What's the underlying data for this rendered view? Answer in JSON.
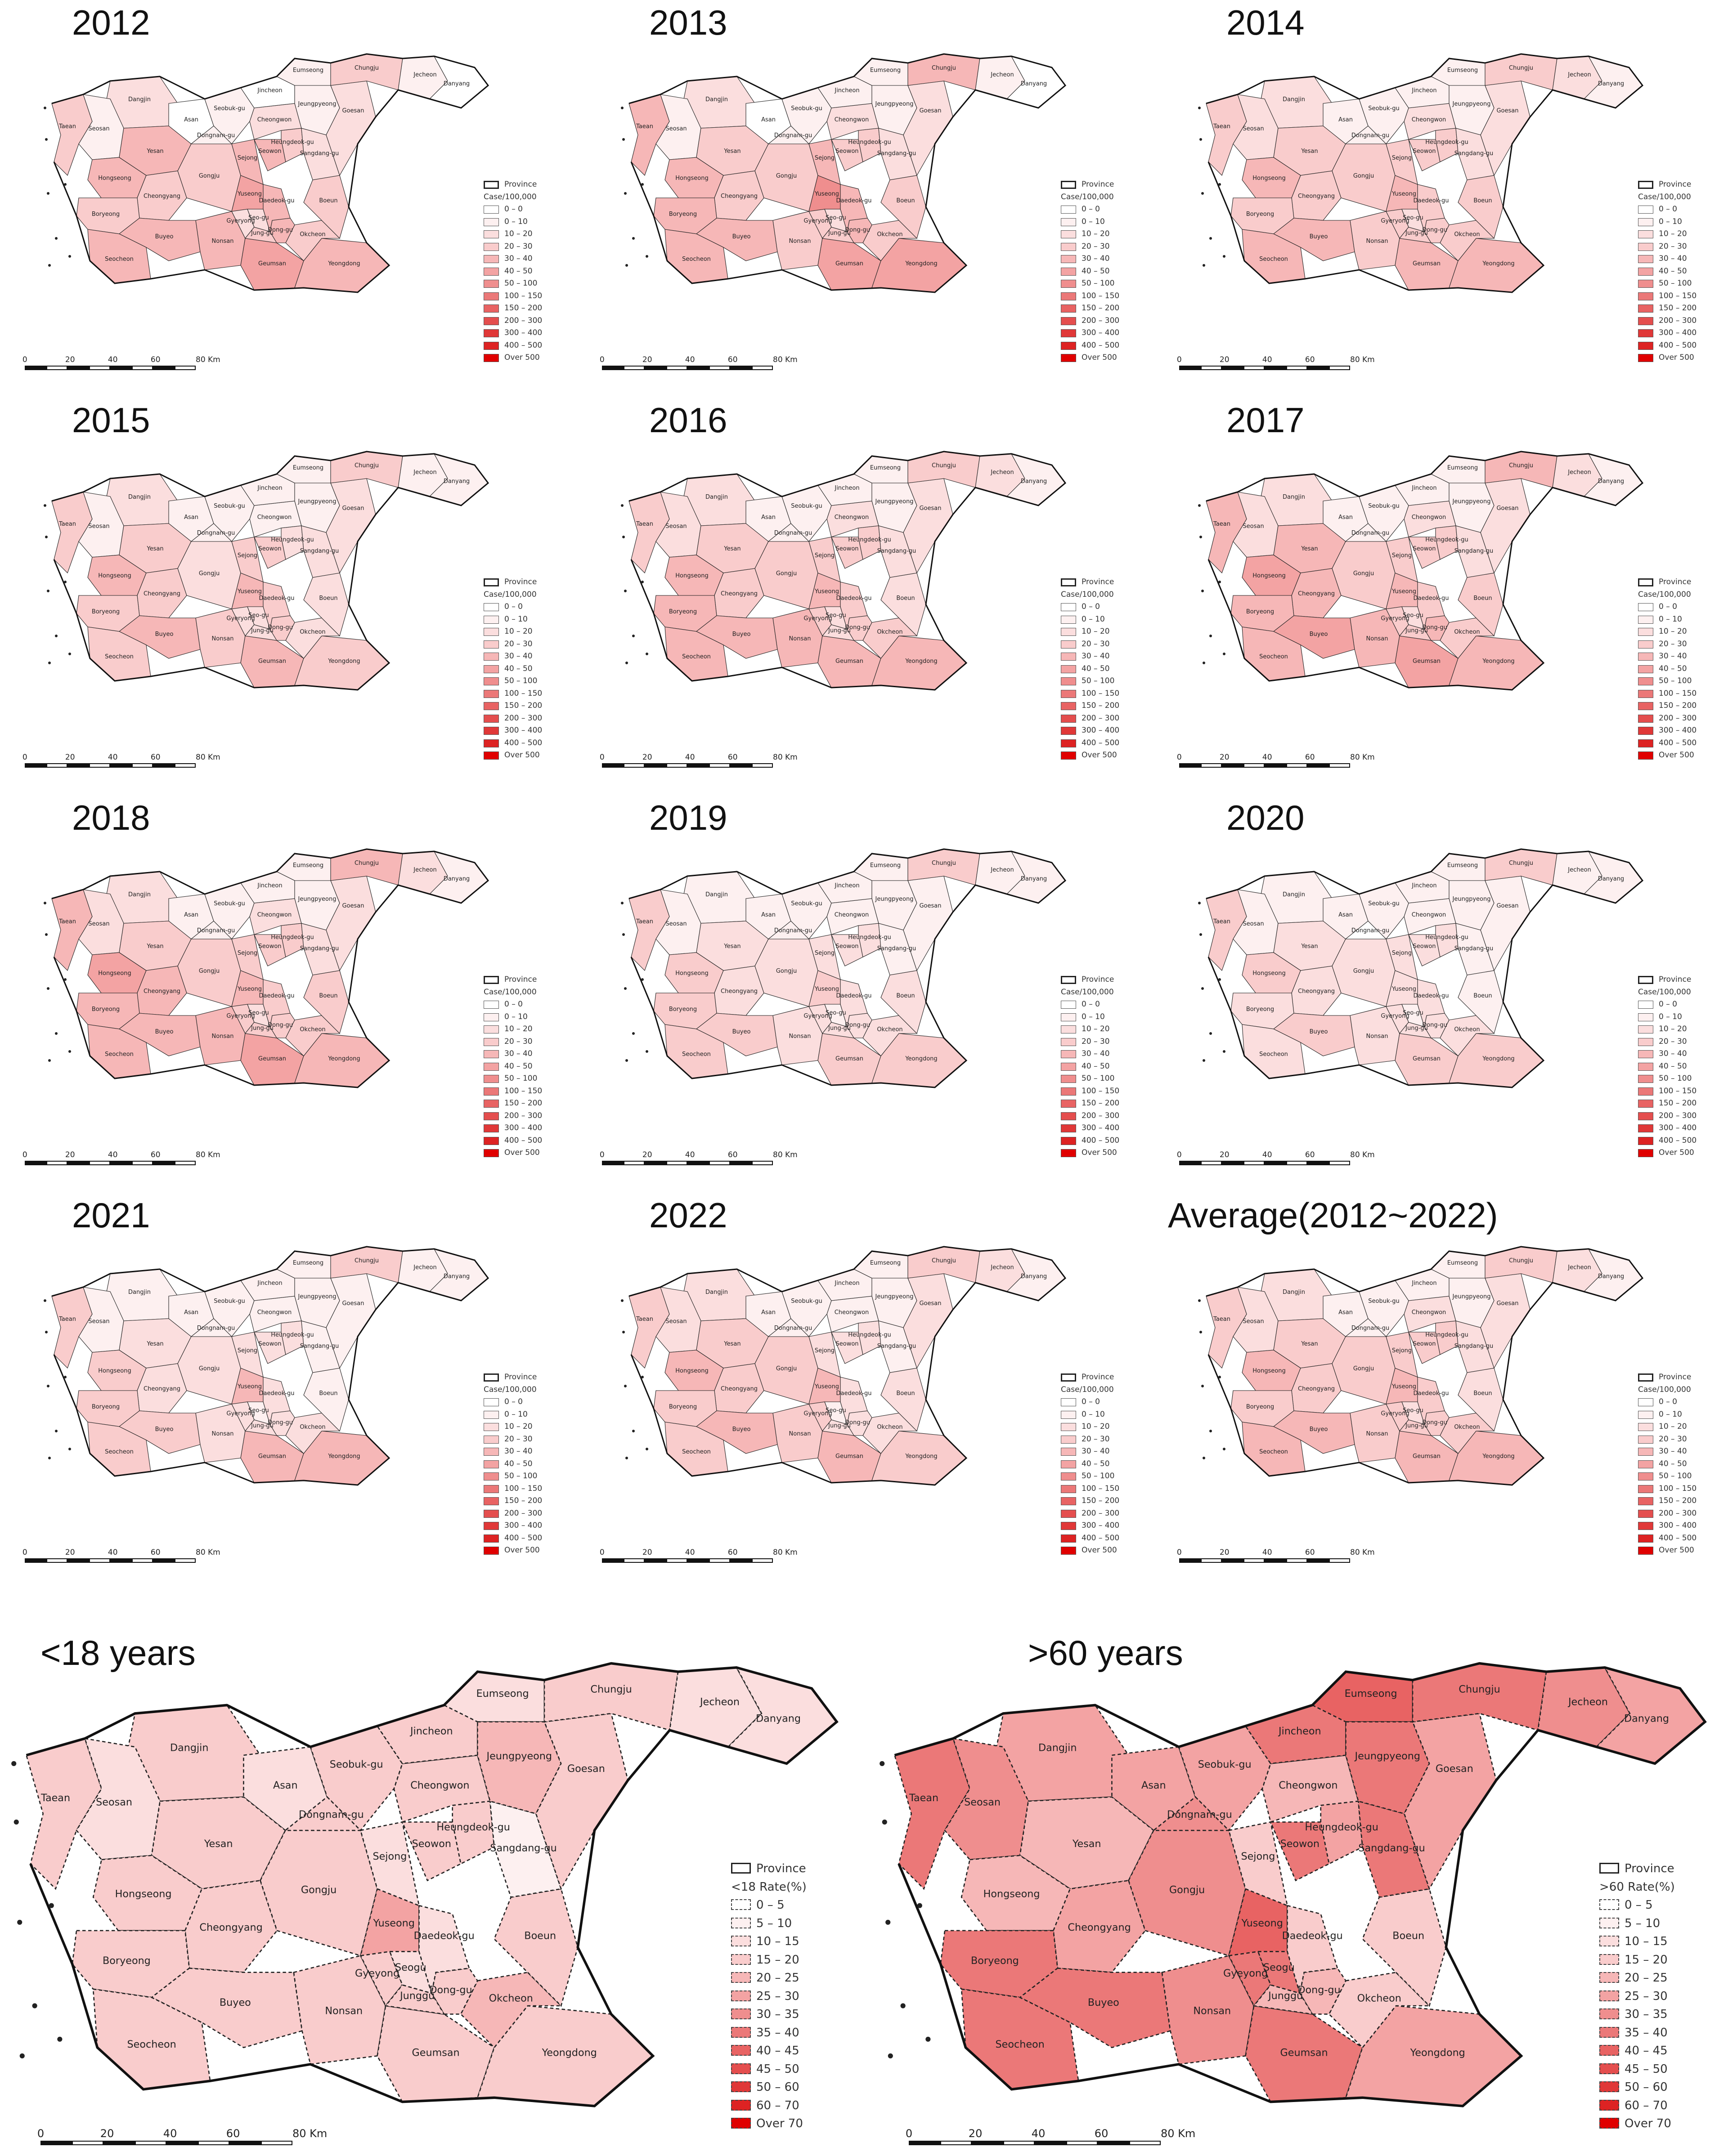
{
  "year_panels": [
    {
      "title": "2012",
      "intensity": [
        2,
        3,
        1,
        0,
        4,
        4,
        3,
        3,
        3,
        4,
        4,
        4,
        2,
        5,
        4,
        3,
        3,
        4,
        3,
        2,
        5,
        4,
        4,
        4,
        3,
        2,
        2,
        1,
        1,
        0,
        1,
        1
      ]
    },
    {
      "title": "2013",
      "intensity": [
        2,
        4,
        1,
        0,
        3,
        4,
        3,
        3,
        4,
        4,
        4,
        3,
        3,
        5,
        5,
        3,
        3,
        4,
        3,
        2,
        6,
        4,
        4,
        3,
        3,
        2,
        2,
        1,
        1,
        1,
        1,
        1
      ]
    },
    {
      "title": "2014",
      "intensity": [
        2,
        3,
        2,
        1,
        3,
        4,
        3,
        3,
        3,
        4,
        4,
        3,
        3,
        4,
        4,
        3,
        3,
        3,
        3,
        2,
        4,
        3,
        3,
        3,
        3,
        2,
        2,
        1,
        1,
        1,
        1,
        1
      ]
    },
    {
      "title": "2015",
      "intensity": [
        2,
        3,
        1,
        1,
        3,
        4,
        3,
        2,
        3,
        4,
        3,
        3,
        2,
        4,
        3,
        2,
        2,
        3,
        2,
        2,
        4,
        3,
        3,
        3,
        2,
        2,
        1,
        1,
        1,
        1,
        1,
        1
      ]
    },
    {
      "title": "2016",
      "intensity": [
        2,
        3,
        2,
        1,
        3,
        4,
        3,
        3,
        4,
        4,
        4,
        4,
        3,
        4,
        4,
        3,
        2,
        3,
        2,
        2,
        4,
        3,
        3,
        3,
        3,
        2,
        2,
        1,
        1,
        1,
        1,
        1
      ]
    },
    {
      "title": "2017",
      "intensity": [
        2,
        4,
        2,
        1,
        4,
        5,
        4,
        3,
        4,
        5,
        4,
        4,
        3,
        5,
        4,
        3,
        3,
        4,
        3,
        2,
        4,
        3,
        3,
        3,
        3,
        2,
        2,
        1,
        1,
        1,
        1,
        1
      ]
    },
    {
      "title": "2018",
      "intensity": [
        2,
        4,
        2,
        1,
        3,
        5,
        4,
        3,
        4,
        4,
        4,
        4,
        3,
        5,
        4,
        3,
        3,
        3,
        3,
        2,
        4,
        3,
        3,
        3,
        3,
        2,
        2,
        1,
        1,
        1,
        1,
        1
      ]
    },
    {
      "title": "2019",
      "intensity": [
        1,
        3,
        1,
        1,
        2,
        3,
        2,
        2,
        3,
        3,
        3,
        2,
        2,
        3,
        3,
        2,
        2,
        2,
        2,
        1,
        3,
        2,
        2,
        2,
        2,
        1,
        1,
        1,
        1,
        1,
        1,
        1
      ]
    },
    {
      "title": "2020",
      "intensity": [
        1,
        3,
        1,
        1,
        2,
        3,
        2,
        2,
        2,
        3,
        2,
        2,
        2,
        3,
        3,
        2,
        1,
        2,
        2,
        1,
        2,
        2,
        2,
        2,
        2,
        1,
        1,
        1,
        0,
        1,
        1,
        1
      ]
    },
    {
      "title": "2021",
      "intensity": [
        1,
        3,
        1,
        1,
        2,
        3,
        2,
        2,
        3,
        3,
        3,
        2,
        2,
        4,
        4,
        2,
        1,
        2,
        2,
        1,
        4,
        2,
        2,
        2,
        2,
        1,
        1,
        1,
        1,
        1,
        1,
        1
      ]
    },
    {
      "title": "2022",
      "intensity": [
        2,
        3,
        2,
        1,
        3,
        4,
        3,
        3,
        3,
        4,
        3,
        3,
        3,
        4,
        3,
        2,
        2,
        2,
        2,
        1,
        4,
        2,
        2,
        2,
        2,
        1,
        1,
        1,
        1,
        1,
        1,
        1
      ]
    },
    {
      "title": "Average(2012~2022)",
      "intensity": [
        2,
        3,
        2,
        1,
        3,
        4,
        3,
        3,
        3,
        4,
        4,
        3,
        3,
        4,
        4,
        3,
        2,
        3,
        3,
        2,
        4,
        3,
        3,
        3,
        3,
        2,
        2,
        1,
        1,
        1,
        1,
        1
      ]
    }
  ],
  "year_legend": {
    "province": "Province",
    "unit": "Case/100,000",
    "classes": [
      "0 – 0",
      "0 – 10",
      "10 – 20",
      "20 – 30",
      "30 – 40",
      "40 – 50",
      "50 – 100",
      "100 – 150",
      "150 – 200",
      "200 – 300",
      "300 – 400",
      "400 – 500",
      "Over 500"
    ],
    "colors": [
      "#ffffff",
      "#fdf0f0",
      "#fbdede",
      "#f9cccc",
      "#f6b7b7",
      "#f3a3a3",
      "#ef8e8e",
      "#eb7878",
      "#e86363",
      "#e44e4e",
      "#e03838",
      "#dd2323",
      "#e00000"
    ]
  },
  "age_panels": [
    {
      "title": "<18 years",
      "intensity": [
        3,
        3,
        2,
        2,
        3,
        3,
        3,
        3,
        3,
        3,
        3,
        3,
        3,
        3,
        3,
        4,
        3,
        3,
        3,
        2,
        5,
        2,
        2,
        3,
        3,
        1,
        3,
        3,
        3,
        3,
        2,
        4
      ]
    },
    {
      "title": ">60 years",
      "intensity": [
        5,
        7,
        6,
        5,
        4,
        4,
        5,
        6,
        7,
        7,
        7,
        6,
        7,
        7,
        5,
        3,
        3,
        4,
        4,
        7,
        8,
        3,
        3,
        7,
        5,
        7,
        4,
        5,
        6,
        7,
        8,
        7
      ]
    }
  ],
  "age_legends": [
    {
      "province": "Province",
      "unit": "<18 Rate(%)"
    },
    {
      "province": "Province",
      "unit": ">60 Rate(%)"
    }
  ],
  "age_legend_classes": [
    "0 – 5",
    "5 – 10",
    "10 – 15",
    "15 – 20",
    "20 – 25",
    "25 – 30",
    "30 – 35",
    "35 – 40",
    "40 – 45",
    "45 – 50",
    "50 – 60",
    "60 – 70",
    "Over 70"
  ],
  "age_legend_colors": [
    "#ffffff",
    "#fdf0f0",
    "#fbdede",
    "#f9cccc",
    "#f6b7b7",
    "#f3a3a3",
    "#ef8e8e",
    "#eb7878",
    "#e86363",
    "#e44e4e",
    "#e03838",
    "#dd2323",
    "#e00000"
  ],
  "region_names": [
    "Dangjin",
    "Taean",
    "Seosan",
    "Asan",
    "Yesan",
    "Hongseong",
    "Cheongyang",
    "Gongju",
    "Boryeong",
    "Buyeo",
    "Seocheon",
    "Nonsan",
    "Gyeryong",
    "Geumsan",
    "Yeongdong",
    "Okcheon",
    "Boeun",
    "Dong-gu",
    "Jung-gu",
    "Seo-gu",
    "Yuseong",
    "Daedeok-gu",
    "Sejong",
    "Seowon",
    "Heungdeok-gu",
    "Sangdang-gu",
    "Cheongwon",
    "Seobuk-gu",
    "Dongnam-gu",
    "Jincheon",
    "Eumseong",
    "Jeungpyeong",
    "Goesan",
    "Chungju",
    "Jecheon",
    "Danyang"
  ],
  "big_map_labels": [
    "Dangjin",
    "Taean",
    "Seosan",
    "Asan",
    "Yesan",
    "Hongseong",
    "Cheongyang",
    "Gongju",
    "Boryeong",
    "Buyeo",
    "Seocheon",
    "Nonsan",
    "Gyeyong",
    "Geumsan",
    "Yeongdong",
    "Okcheon",
    "Boeun",
    "Dong-gu",
    "Junggu",
    "Seogu",
    "Yuseong",
    "Daedeok-gu",
    "Sejong",
    "Seowon",
    "Heungdeok-gu",
    "Sangdang-gu",
    "Cheongwon",
    "Seobuk-gu",
    "Dongnam-gu",
    "Jincheon",
    "Eumseong",
    "Jeungpyeong",
    "Goesan",
    "Chungju",
    "Jecheon",
    "Danyang"
  ],
  "scale_small": [
    "0",
    "20",
    "40",
    "60",
    "80 Km"
  ],
  "scale_large": [
    "0",
    "20",
    "40",
    "60",
    "80 Km"
  ]
}
